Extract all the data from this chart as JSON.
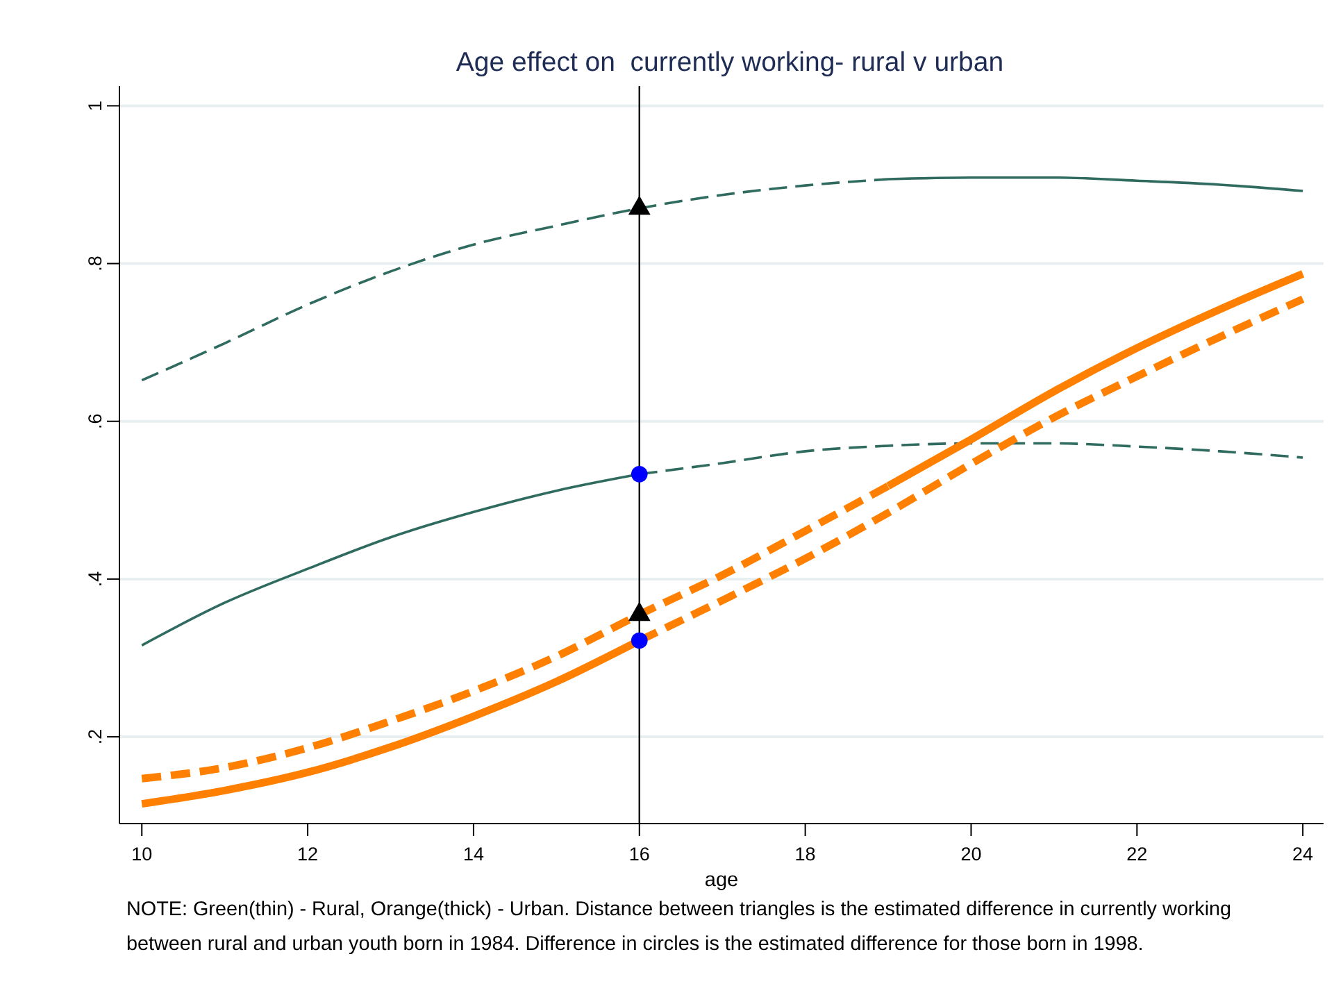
{
  "chart_data": {
    "type": "line",
    "title": "Age effect on  currently working- rural v urban",
    "xlabel": "age",
    "xlim": [
      9.73,
      24.25
    ],
    "xticks": [
      10,
      12,
      14,
      16,
      18,
      20,
      22,
      24
    ],
    "ylim": [
      0.09,
      1.025
    ],
    "yticks": [
      {
        "value": 0.2,
        "label": ".2"
      },
      {
        "value": 0.4,
        "label": ".4"
      },
      {
        "value": 0.6,
        "label": ".6"
      },
      {
        "value": 0.8,
        "label": ".8"
      },
      1
    ],
    "grid": "y",
    "series": [
      {
        "type": "line",
        "color": "#2f6b5f",
        "line_style": "solid",
        "x": [
          10,
          11,
          12,
          13,
          14,
          15,
          16
        ],
        "values": [
          0.316,
          0.37,
          0.413,
          0.453,
          0.485,
          0.512,
          0.533
        ]
      },
      {
        "type": "line",
        "color": "#2f6b5f",
        "line_style": "dashed",
        "x": [
          16,
          17,
          18,
          19,
          20,
          21,
          22,
          23,
          24
        ],
        "values": [
          0.533,
          0.547,
          0.562,
          0.569,
          0.572,
          0.572,
          0.568,
          0.562,
          0.554
        ]
      },
      {
        "type": "line",
        "color": "#2f6b5f",
        "line_style": "dashed",
        "x": [
          10,
          11,
          12,
          13,
          14,
          15,
          16,
          17,
          18,
          19
        ],
        "values": [
          0.652,
          0.699,
          0.748,
          0.79,
          0.824,
          0.848,
          0.87,
          0.887,
          0.899,
          0.907
        ]
      },
      {
        "type": "line",
        "color": "#2f6b5f",
        "line_style": "solid",
        "x": [
          19,
          20,
          21,
          22,
          23,
          24
        ],
        "values": [
          0.907,
          0.909,
          0.909,
          0.905,
          0.9,
          0.892
        ]
      },
      {
        "type": "line",
        "color": "#ff8000",
        "line_style": "solid",
        "x": [
          10,
          11,
          12,
          13,
          14,
          15,
          16
        ],
        "values": [
          0.115,
          0.132,
          0.155,
          0.187,
          0.226,
          0.27,
          0.322
        ]
      },
      {
        "type": "line",
        "color": "#ff8000",
        "line_style": "dashed",
        "x": [
          16,
          17,
          18,
          19,
          20,
          21,
          22,
          23,
          24
        ],
        "values": [
          0.322,
          0.373,
          0.426,
          0.484,
          0.546,
          0.605,
          0.657,
          0.707,
          0.755
        ]
      },
      {
        "type": "line",
        "color": "#ff8000",
        "line_style": "dashed",
        "x": [
          10,
          11,
          12,
          13,
          14,
          15,
          16,
          17,
          18,
          19
        ],
        "values": [
          0.147,
          0.161,
          0.186,
          0.22,
          0.258,
          0.302,
          0.355,
          0.405,
          0.461,
          0.518
        ]
      },
      {
        "type": "line",
        "color": "#ff8000",
        "line_style": "solid",
        "x": [
          19,
          20,
          21,
          22,
          23,
          24
        ],
        "values": [
          0.518,
          0.577,
          0.638,
          0.693,
          0.742,
          0.787
        ]
      },
      {
        "type": "scatter",
        "color": "#000000",
        "marker": "triangle",
        "x": [
          16,
          16
        ],
        "values": [
          0.87,
          0.355
        ]
      },
      {
        "type": "scatter",
        "color": "#0000ff",
        "marker": "circle",
        "x": [
          16,
          16
        ],
        "values": [
          0.533,
          0.322
        ]
      }
    ],
    "ref_lines": [
      {
        "axis": "x",
        "value": 16,
        "color": "#000000"
      }
    ],
    "annotations": [
      "NOTE: Green(thin) - Rural, Orange(thick) - Urban. Distance between triangles is the estimated difference in currently working between rural and urban youth born in 1984. Difference in circles is the estimated difference for those born in 1998."
    ]
  }
}
